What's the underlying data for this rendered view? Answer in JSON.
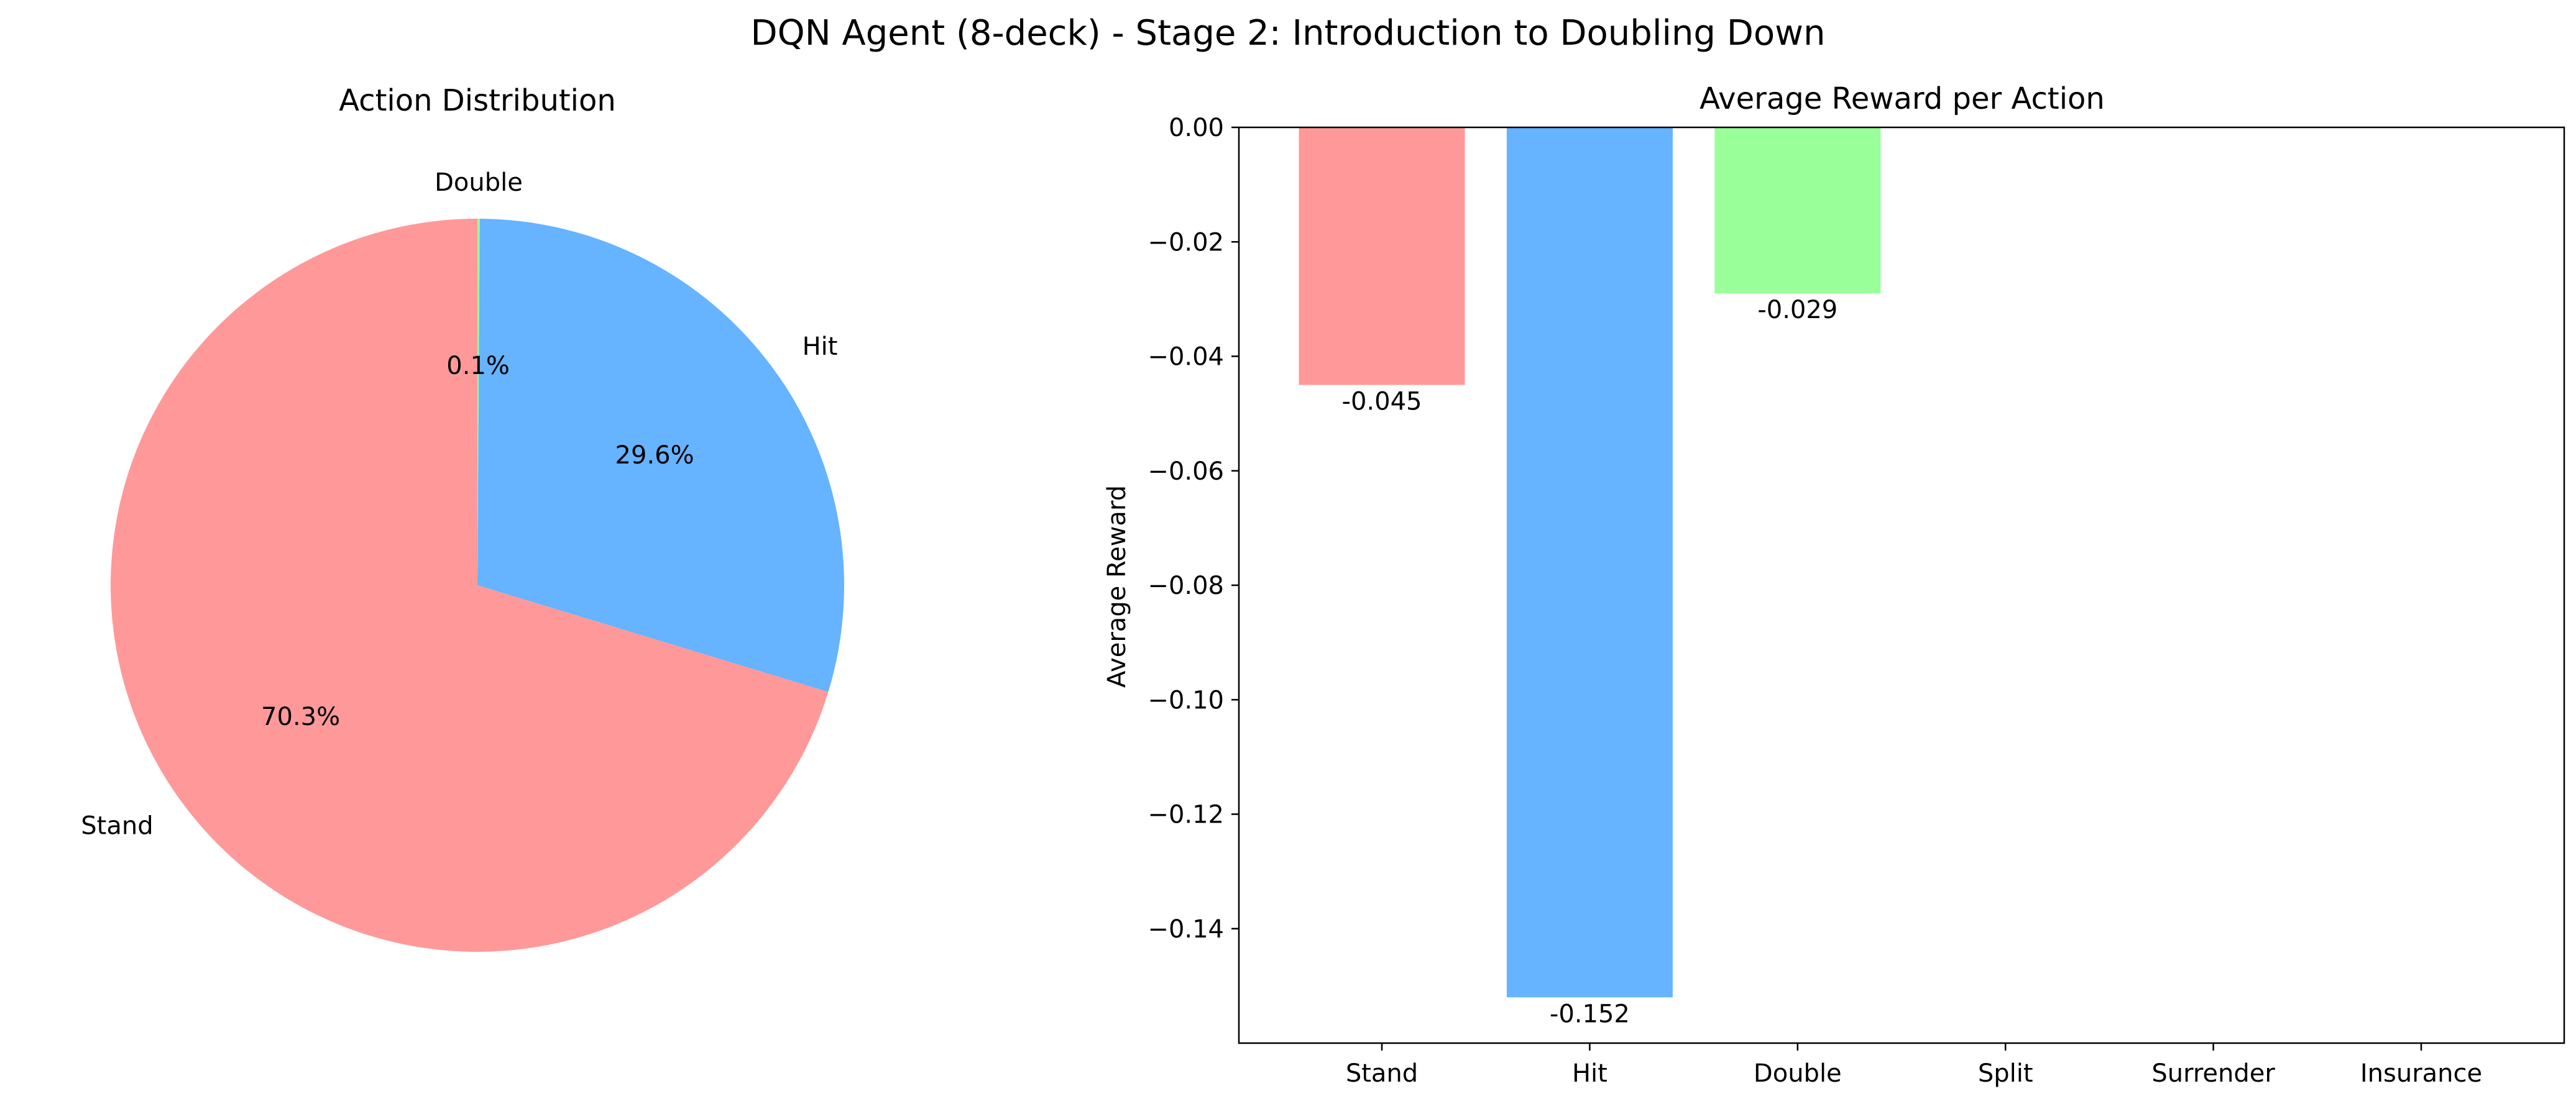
{
  "chart_data": {
    "title": "DQN Agent (8-deck) - Stage 2: Introduction to Doubling Down",
    "charts": [
      {
        "type": "pie",
        "title": "Action Distribution",
        "labels": [
          "Stand",
          "Hit",
          "Double"
        ],
        "values": [
          70.3,
          29.6,
          0.1
        ],
        "pct_labels": [
          "70.3%",
          "29.6%",
          "0.1%"
        ],
        "colors": [
          "#ff9999",
          "#66b3ff",
          "#99ff99"
        ],
        "start_angle": 90,
        "direction": "counterclockwise"
      },
      {
        "type": "bar",
        "title": "Average Reward per Action",
        "categories": [
          "Stand",
          "Hit",
          "Double",
          "Split",
          "Surrender",
          "Insurance"
        ],
        "values": [
          -0.045,
          -0.152,
          -0.029,
          null,
          null,
          null
        ],
        "value_labels": [
          "-0.045",
          "-0.152",
          "-0.029",
          "",
          "",
          ""
        ],
        "colors": [
          "#ff9999",
          "#66b3ff",
          "#99ff99",
          "#ffcc99",
          "#c2c2f0",
          "#ffb3e6"
        ],
        "ylabel": "Average Reward",
        "xlabel": "",
        "ylim": [
          -0.16,
          0.0
        ],
        "yticks": [
          0.0,
          -0.02,
          -0.04,
          -0.06,
          -0.08,
          -0.1,
          -0.12,
          -0.14
        ],
        "ytick_labels": [
          "0.00",
          "−0.02",
          "−0.04",
          "−0.06",
          "−0.08",
          "−0.10",
          "−0.12",
          "−0.14"
        ],
        "grid": false
      }
    ]
  }
}
